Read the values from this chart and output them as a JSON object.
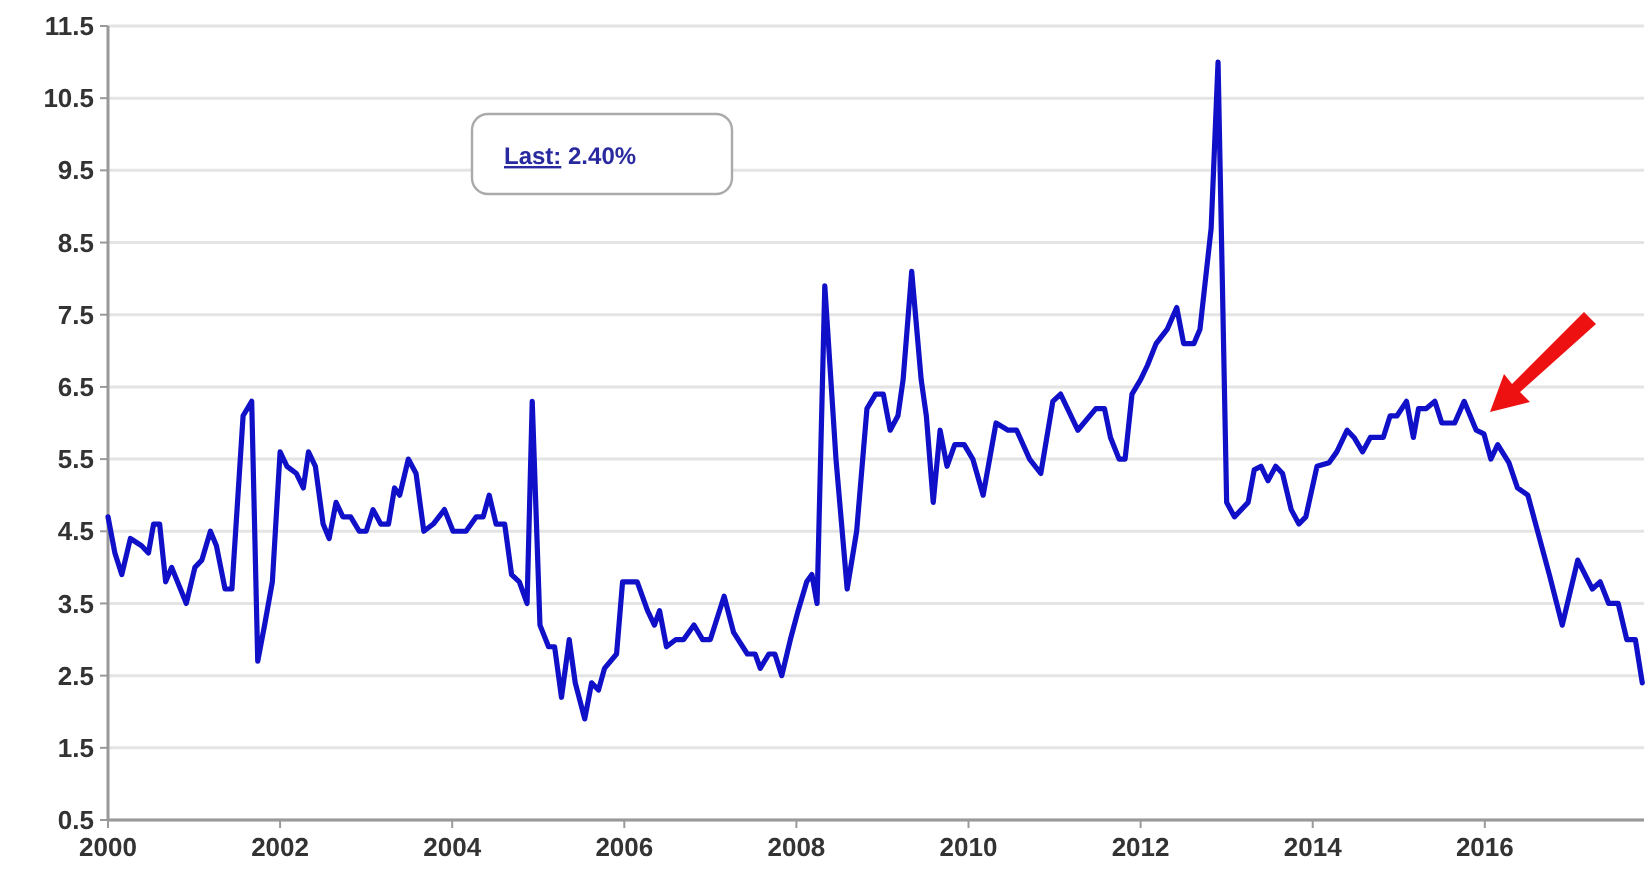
{
  "chart_data": {
    "type": "line",
    "xlim": [
      2000,
      2017.85
    ],
    "xticks": [
      2000,
      2002,
      2004,
      2006,
      2008,
      2010,
      2012,
      2014,
      2016
    ],
    "ylim": [
      0.5,
      11.5
    ],
    "yticks": [
      0.5,
      1.5,
      2.5,
      3.5,
      4.5,
      5.5,
      6.5,
      7.5,
      8.5,
      9.5,
      10.5,
      11.5
    ],
    "grid": "y",
    "marker": "none",
    "line_style": "solid",
    "annotations": [
      "Last: 2.40%"
    ],
    "series": [
      {
        "color": "#1010c8",
        "x": [
          2000.0,
          2000.08,
          2000.16,
          2000.26,
          2000.39,
          2000.47,
          2000.53,
          2000.6,
          2000.67,
          2000.74,
          2000.91,
          2001.01,
          2001.09,
          2001.19,
          2001.26,
          2001.36,
          2001.44,
          2001.57,
          2001.67,
          2001.74,
          2001.82,
          2001.91,
          2002.0,
          2002.08,
          2002.19,
          2002.27,
          2002.33,
          2002.41,
          2002.5,
          2002.57,
          2002.65,
          2002.73,
          2002.82,
          2002.92,
          2003.0,
          2003.08,
          2003.17,
          2003.26,
          2003.33,
          2003.39,
          2003.49,
          2003.58,
          2003.67,
          2003.78,
          2003.91,
          2004.01,
          2004.16,
          2004.28,
          2004.36,
          2004.43,
          2004.51,
          2004.61,
          2004.69,
          2004.78,
          2004.87,
          2004.93,
          2005.02,
          2005.12,
          2005.19,
          2005.27,
          2005.36,
          2005.43,
          2005.54,
          2005.62,
          2005.7,
          2005.77,
          2005.91,
          2005.98,
          2006.15,
          2006.27,
          2006.35,
          2006.41,
          2006.49,
          2006.6,
          2006.69,
          2006.81,
          2006.91,
          2007.0,
          2007.16,
          2007.27,
          2007.43,
          2007.52,
          2007.58,
          2007.68,
          2007.75,
          2007.83,
          2007.93,
          2008.02,
          2008.12,
          2008.18,
          2008.24,
          2008.33,
          2008.46,
          2008.59,
          2008.7,
          2008.82,
          2008.92,
          2009.01,
          2009.09,
          2009.18,
          2009.24,
          2009.34,
          2009.45,
          2009.51,
          2009.59,
          2009.67,
          2009.75,
          2009.84,
          2009.95,
          2010.05,
          2010.17,
          2010.32,
          2010.46,
          2010.56,
          2010.71,
          2010.84,
          2010.98,
          2011.07,
          2011.27,
          2011.48,
          2011.58,
          2011.65,
          2011.75,
          2011.82,
          2011.9,
          2012.0,
          2012.08,
          2012.18,
          2012.31,
          2012.42,
          2012.5,
          2012.62,
          2012.69,
          2012.82,
          2012.9,
          2013.0,
          2013.09,
          2013.25,
          2013.32,
          2013.4,
          2013.48,
          2013.57,
          2013.65,
          2013.75,
          2013.84,
          2013.92,
          2014.05,
          2014.19,
          2014.28,
          2014.4,
          2014.48,
          2014.58,
          2014.67,
          2014.82,
          2014.9,
          2014.98,
          2015.09,
          2015.17,
          2015.23,
          2015.32,
          2015.42,
          2015.5,
          2015.65,
          2015.76,
          2015.9,
          2015.99,
          2016.07,
          2016.15,
          2016.28,
          2016.38,
          2016.5,
          2016.75,
          2016.9,
          2017.08,
          2017.25,
          2017.34,
          2017.44,
          2017.55,
          2017.65,
          2017.75,
          2017.83
        ],
        "values": [
          4.7,
          4.2,
          3.9,
          4.4,
          4.3,
          4.2,
          4.6,
          4.6,
          3.8,
          4.0,
          3.5,
          4.0,
          4.1,
          4.5,
          4.3,
          3.7,
          3.7,
          6.1,
          6.3,
          2.7,
          3.2,
          3.8,
          5.6,
          5.4,
          5.3,
          5.1,
          5.6,
          5.4,
          4.6,
          4.4,
          4.9,
          4.7,
          4.7,
          4.5,
          4.5,
          4.8,
          4.6,
          4.6,
          5.1,
          5.0,
          5.5,
          5.3,
          4.5,
          4.6,
          4.8,
          4.5,
          4.5,
          4.7,
          4.7,
          5.0,
          4.6,
          4.6,
          3.9,
          3.8,
          3.5,
          6.3,
          3.2,
          2.9,
          2.9,
          2.2,
          3.0,
          2.4,
          1.9,
          2.4,
          2.3,
          2.6,
          2.8,
          3.8,
          3.8,
          3.4,
          3.2,
          3.4,
          2.9,
          3.0,
          3.0,
          3.2,
          3.0,
          3.0,
          3.6,
          3.1,
          2.8,
          2.8,
          2.6,
          2.8,
          2.8,
          2.5,
          3.0,
          3.4,
          3.8,
          3.9,
          3.5,
          7.9,
          5.5,
          3.7,
          4.5,
          6.2,
          6.4,
          6.4,
          5.9,
          6.1,
          6.6,
          8.1,
          6.6,
          6.1,
          4.9,
          5.9,
          5.4,
          5.7,
          5.7,
          5.5,
          5.0,
          6.0,
          5.9,
          5.9,
          5.5,
          5.3,
          6.3,
          6.4,
          5.9,
          6.2,
          6.2,
          5.8,
          5.5,
          5.5,
          6.4,
          6.6,
          6.8,
          7.1,
          7.3,
          7.6,
          7.1,
          7.1,
          7.3,
          8.7,
          11.0,
          4.9,
          4.7,
          4.9,
          5.35,
          5.4,
          5.2,
          5.4,
          5.3,
          4.8,
          4.6,
          4.7,
          5.4,
          5.45,
          5.6,
          5.9,
          5.8,
          5.6,
          5.8,
          5.8,
          6.1,
          6.1,
          6.3,
          5.8,
          6.2,
          6.2,
          6.3,
          6.0,
          6.0,
          6.3,
          5.9,
          5.85,
          5.5,
          5.7,
          5.45,
          5.1,
          5.0,
          3.9,
          3.2,
          4.1,
          3.7,
          3.8,
          3.5,
          3.5,
          3.0,
          3.0,
          2.4
        ]
      }
    ]
  }
}
